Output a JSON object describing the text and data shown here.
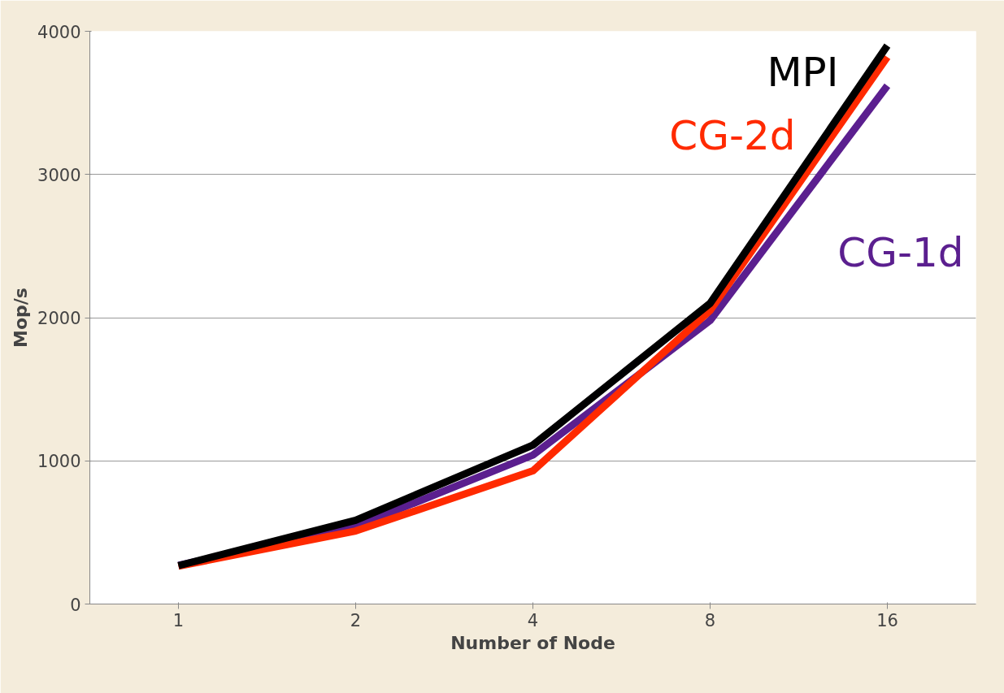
{
  "chart_data": {
    "type": "line",
    "xlabel": "Number of Node",
    "ylabel": "Mop/s",
    "categories": [
      "1",
      "2",
      "4",
      "8",
      "16"
    ],
    "series": [
      {
        "name": "CG-1d",
        "color": "#5b1f8f",
        "values": [
          270,
          540,
          1040,
          1980,
          3620
        ]
      },
      {
        "name": "CG-2d",
        "color": "#ff2a00",
        "values": [
          265,
          510,
          930,
          2050,
          3820
        ]
      },
      {
        "name": "MPI",
        "color": "#000000",
        "values": [
          268,
          585,
          1110,
          2100,
          3900
        ]
      }
    ],
    "ylim": [
      0,
      4000
    ],
    "yticks": [
      0,
      1000,
      2000,
      3000,
      4000
    ],
    "grid": "y",
    "marker": "none",
    "line_style": "solid"
  }
}
